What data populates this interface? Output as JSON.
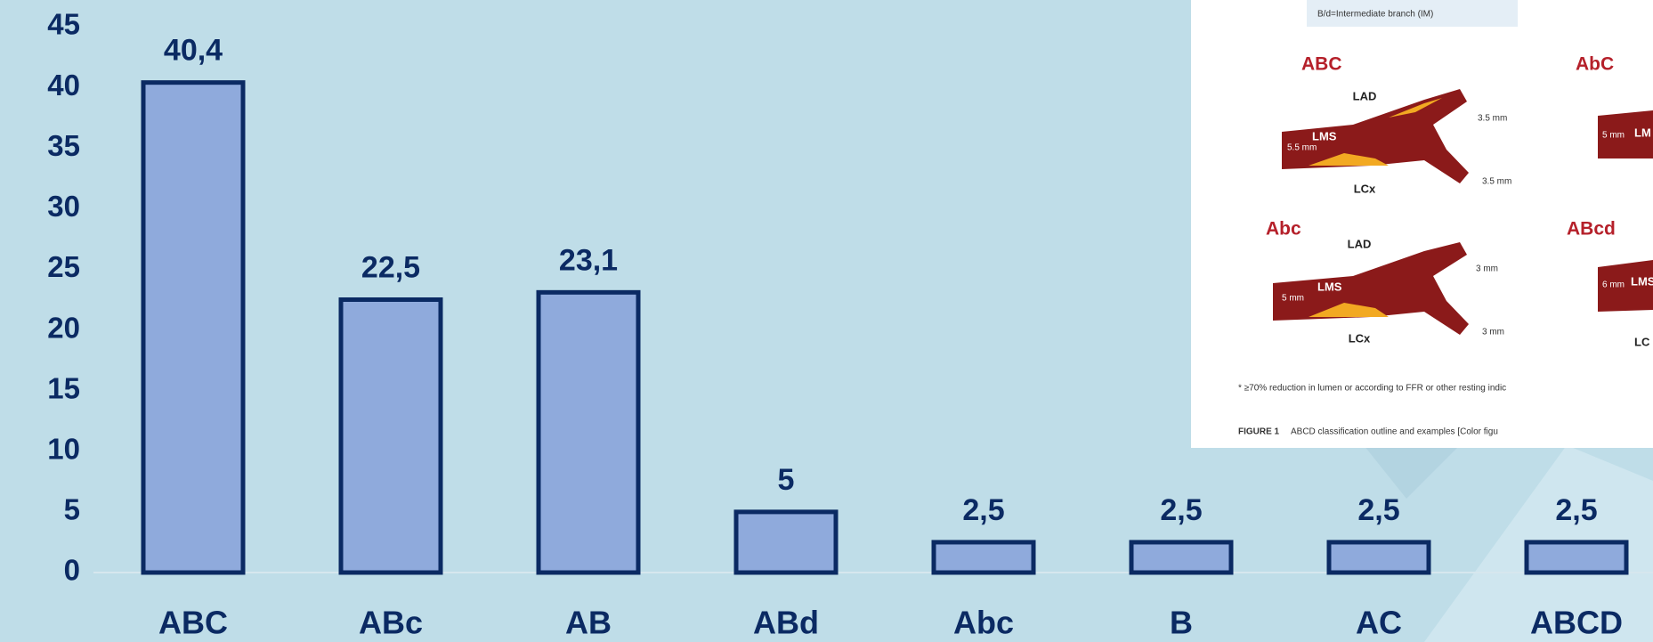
{
  "chart_data": {
    "type": "bar",
    "categories": [
      "ABC",
      "ABc",
      "AB",
      "ABd",
      "Abc",
      "B",
      "AC",
      "ABCD"
    ],
    "values": [
      40.4,
      22.5,
      23.1,
      5,
      2.5,
      2.5,
      2.5,
      2.5
    ],
    "value_labels": [
      "40,4",
      "22,5",
      "23,1",
      "5",
      "2,5",
      "2,5",
      "2,5",
      "2,5"
    ],
    "color": "#8faadc",
    "edge_color": "#0b2a63",
    "ylim": [
      0,
      45
    ],
    "yticks": [
      0,
      5,
      10,
      15,
      20,
      25,
      30,
      35,
      40,
      45
    ],
    "grid": false
  },
  "inset": {
    "header": "B/d=Intermediate branch (IM)",
    "panels": [
      {
        "title": "ABC",
        "labels": [
          "LAD",
          "LMS",
          "LCx",
          "3.5 mm",
          "5.5 mm",
          "3.5 mm"
        ]
      },
      {
        "title": "AbC",
        "labels": [
          "5 mm",
          "LM"
        ]
      },
      {
        "title": "Abc",
        "labels": [
          "LAD",
          "LMS",
          "LCx",
          "3 mm",
          "5 mm",
          "3 mm"
        ]
      },
      {
        "title": "ABcd",
        "labels": [
          "6 mm",
          "LMS",
          "LC"
        ]
      }
    ],
    "footnote": "* ≥70% reduction in lumen or according to FFR or other resting indic",
    "caption_label": "FIGURE 1",
    "caption": "ABCD classification outline and examples [Color figu"
  }
}
